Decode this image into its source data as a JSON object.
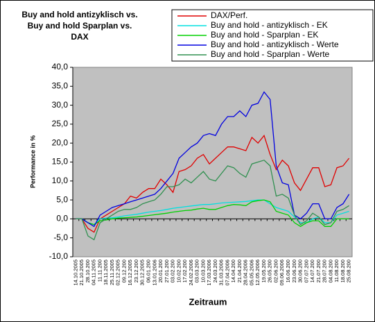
{
  "chart_data": {
    "type": "line",
    "title": [
      "Buy and hold antizyklisch vs.",
      "Buy and hold Sparplan vs.",
      "DAX"
    ],
    "x_label": "Zeitraum",
    "y_label": "Performance in %",
    "categories": [
      "14.10.2005",
      "21.10.2005",
      "28.10.200",
      "04.11.2005",
      "11.11.200",
      "18.11.2005",
      "25.11.2005",
      "02.12.2005",
      "09.12.200",
      "16.12.2005",
      "23.12.200",
      "30.12.2005",
      "06.01.200",
      "13.01.2006",
      "20.01.200",
      "27.01.200",
      "03.02.200",
      "10.02.200",
      "17.02.200",
      "24.02.2006",
      "03.03.200",
      "10.03.200",
      "17.03.2006",
      "24.03.200",
      "31.03.2006",
      "07.04.2006",
      "14.04.200",
      "21.04.200",
      "28.04.2006",
      "05.05.2006",
      "12.05.2006",
      "19.05.200",
      "26.05.200",
      "02.06.200",
      "09.06.2006",
      "16.06.200",
      "23.06.200",
      "30.06.200",
      "07.07.200",
      "14.07.200",
      "21.07.200",
      "28.07.200",
      "04.08.200",
      "11.08.200",
      "18.08.200",
      "25.08.200"
    ],
    "series": [
      {
        "name": "DAX/Perf.",
        "color": "#e00000",
        "values": [
          0,
          0,
          -2.5,
          -3.5,
          0,
          1,
          2,
          3,
          4,
          6,
          5.5,
          7,
          8,
          8,
          10.5,
          9,
          7,
          12.5,
          13,
          14,
          16,
          17,
          14.5,
          16,
          17.5,
          19,
          19,
          18.5,
          18,
          21.5,
          20,
          22,
          17,
          13,
          15.5,
          14,
          9.5,
          7.5,
          10.5,
          13.5,
          13.5,
          8.5,
          9,
          13.5,
          14,
          16
        ]
      },
      {
        "name": "Buy and hold - antizyklisch - EK",
        "color": "#00e0e0",
        "values": [
          0,
          0,
          -1,
          -1.5,
          0,
          0.2,
          0.3,
          0.5,
          0.8,
          1,
          1.2,
          1.5,
          1.8,
          2,
          2.2,
          2.5,
          2.8,
          3,
          3.2,
          3.4,
          3.6,
          3.8,
          3.8,
          4,
          4.2,
          4.3,
          4.4,
          4.5,
          4.6,
          4.8,
          5,
          5,
          4,
          3,
          2.5,
          2,
          0.5,
          -1,
          -1,
          0,
          0.5,
          -1,
          -1,
          1,
          1.5,
          2
        ]
      },
      {
        "name": "Buy and hold - Sparplan - EK",
        "color": "#00d000",
        "values": [
          0,
          0,
          -1,
          -1.5,
          -0.5,
          -0.3,
          0,
          0.2,
          0.3,
          0.4,
          0.5,
          0.7,
          0.9,
          1.1,
          1.3,
          1.5,
          1.8,
          2,
          2.2,
          2.3,
          2.6,
          2.8,
          2.5,
          2.5,
          3,
          3.5,
          3.8,
          3.7,
          3.5,
          4.5,
          4.8,
          5,
          4.5,
          2,
          1.5,
          1,
          -1,
          -2,
          -1,
          -0.5,
          -0.5,
          -2,
          -2,
          0,
          0,
          0
        ]
      },
      {
        "name": "Buy and hold - antizyklisch - Werte",
        "color": "#0000e0",
        "values": [
          0,
          0,
          -1,
          -2,
          1,
          2,
          3,
          3.5,
          4,
          4.5,
          5,
          5.5,
          6,
          6.5,
          8,
          10,
          12,
          16,
          17.5,
          19,
          20,
          22,
          22.5,
          22,
          25,
          27,
          27,
          28.5,
          27,
          30,
          30.5,
          33.5,
          31.5,
          14,
          9.5,
          9,
          1,
          0,
          1.5,
          4,
          4,
          0,
          0,
          3,
          4,
          6.5
        ]
      },
      {
        "name": "Buy and hold - Sparplan - Werte",
        "color": "#309050",
        "values": [
          0,
          0,
          -4.5,
          -5.5,
          -1,
          0,
          1,
          2,
          2.5,
          2.5,
          3,
          4,
          4.5,
          5,
          6.5,
          8.5,
          8.5,
          9,
          10.5,
          9.5,
          11,
          12.5,
          10.5,
          10,
          12,
          14,
          13.5,
          12,
          11,
          14.5,
          15,
          15.5,
          14,
          6,
          6.5,
          5.5,
          1,
          -1.5,
          -0.5,
          1.5,
          0.5,
          -1.5,
          -1,
          2,
          2.5,
          3.5
        ]
      }
    ],
    "ylim": [
      -10,
      40
    ],
    "yticks": [
      {
        "value": -10,
        "label": "-10,0"
      },
      {
        "value": -5,
        "label": "-5,0"
      },
      {
        "value": 0,
        "label": "0,0"
      },
      {
        "value": 5,
        "label": "5,0"
      },
      {
        "value": 10,
        "label": "10,0"
      },
      {
        "value": 15,
        "label": "15,0"
      },
      {
        "value": 20,
        "label": "20,0"
      },
      {
        "value": 25,
        "label": "25,0"
      },
      {
        "value": 30,
        "label": "30,0"
      },
      {
        "value": 35,
        "label": "35,0"
      },
      {
        "value": 40,
        "label": "40,0"
      }
    ],
    "plot_background": "#c0c0c0",
    "legend": "top-right"
  }
}
